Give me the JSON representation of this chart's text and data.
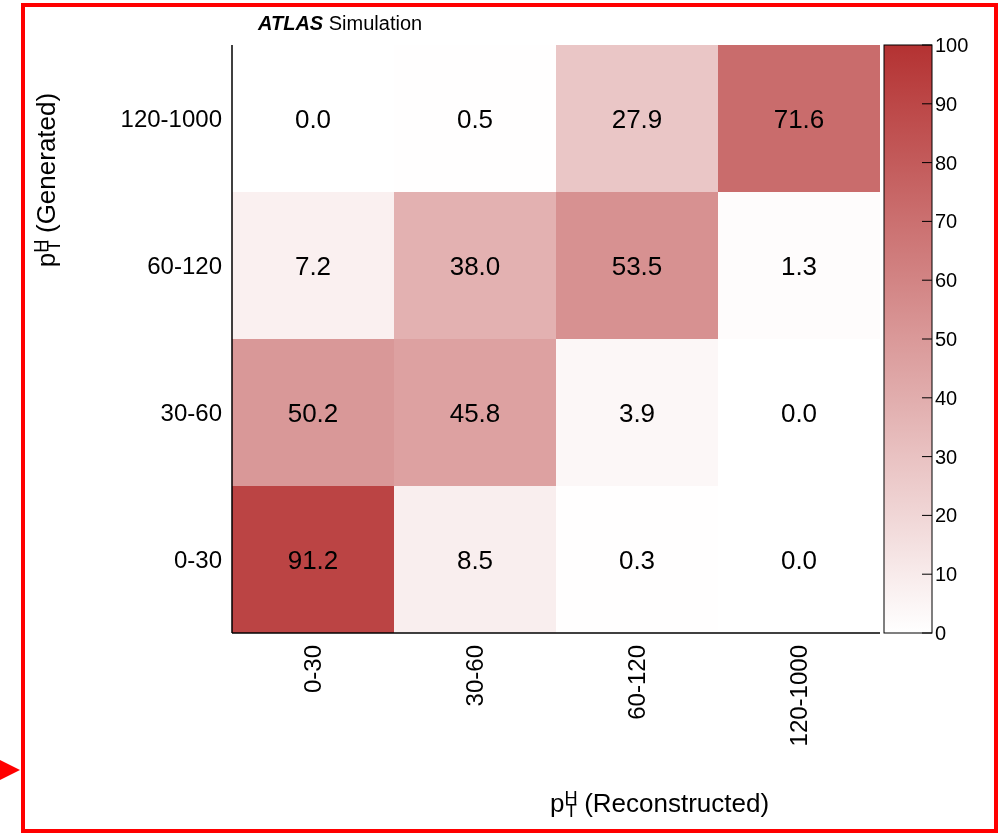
{
  "chart_data": {
    "type": "heatmap",
    "title": "ATLAS Simulation",
    "xlabel": "p$^{H}$$_{T}$ (Reconstructed)",
    "ylabel": "p$^{H}$$_{T}$ (Generated)",
    "categories": [
      "0-30",
      "30-60",
      "60-120",
      "120-1000"
    ],
    "y_categories": [
      "120-1000",
      "60-120",
      "30-60",
      "0-30"
    ],
    "cells": [
      [
        0.0,
        0.5,
        27.9,
        71.6
      ],
      [
        7.2,
        38.0,
        53.5,
        1.3
      ],
      [
        50.2,
        45.8,
        3.9,
        0.0
      ],
      [
        91.2,
        8.5,
        0.3,
        0.0
      ]
    ],
    "cell_labels": [
      [
        "0.0",
        "0.5",
        "27.9",
        "71.6"
      ],
      [
        "7.2",
        "38.0",
        "53.5",
        "1.3"
      ],
      [
        "50.2",
        "45.8",
        "3.9",
        "0.0"
      ],
      [
        "91.2",
        "8.5",
        "0.3",
        "0.0"
      ]
    ],
    "clim": [
      0,
      100
    ],
    "cticks": [
      0,
      10,
      20,
      30,
      40,
      50,
      60,
      70,
      80,
      90,
      100
    ]
  }
}
